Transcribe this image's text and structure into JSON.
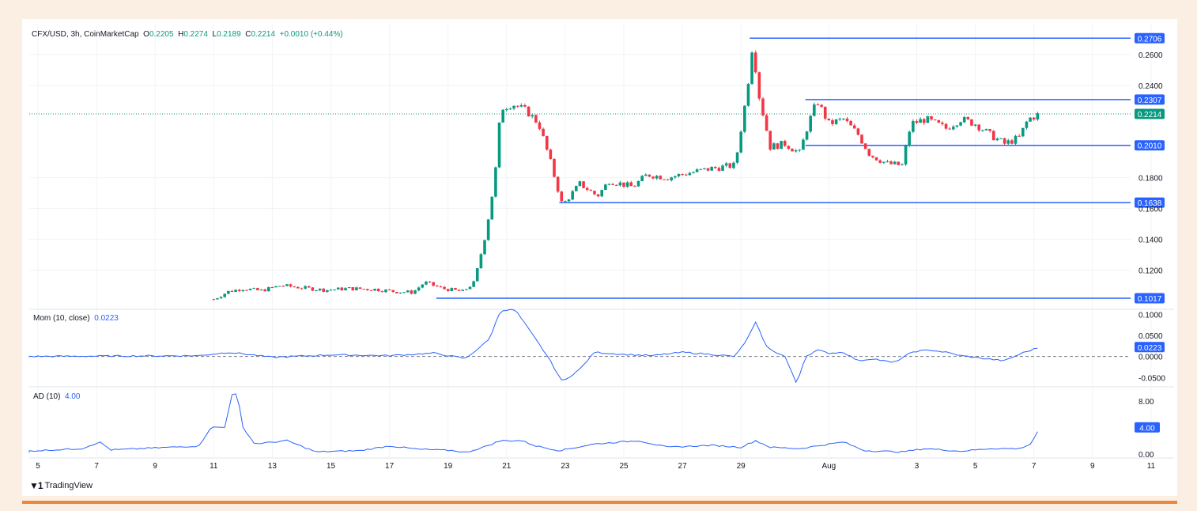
{
  "header": {
    "symbol": "CFX/USD, 3h, CoinMarketCap",
    "o_label": "O",
    "o_val": "0.2205",
    "h_label": "H",
    "h_val": "0.2274",
    "l_label": "L",
    "l_val": "0.2189",
    "c_label": "C",
    "c_val": "0.2214",
    "change": "+0.0010 (+0.44%)"
  },
  "mom_header": {
    "label": "Mom (10, close)",
    "value": "0.0223"
  },
  "ad_header": {
    "label": "AD (10)",
    "value": "4.00"
  },
  "branding": {
    "name": "TradingView"
  },
  "colors": {
    "up": "#089981",
    "down": "#f23645",
    "level": "#2962ff",
    "indicator": "#2962ff",
    "background": "#ffffff",
    "page": "#fbeee3",
    "accent_bar": "#e8893e"
  },
  "chart_data": [
    {
      "type": "candlestick",
      "title": "CFX/USD, 3h, CoinMarketCap",
      "x_ticks": [
        "5",
        "7",
        "9",
        "11",
        "13",
        "15",
        "17",
        "19",
        "21",
        "23",
        "25",
        "27",
        "29",
        "Aug",
        "3",
        "5",
        "7",
        "9",
        "11"
      ],
      "y_ticks": [
        "0.2600",
        "0.2400",
        "0.1800",
        "0.1600",
        "0.1400",
        "0.1200"
      ],
      "ylim": [
        0.095,
        0.28
      ],
      "current_price": 0.2214,
      "horizontal_levels": [
        {
          "value": 0.2706,
          "label": "0.2706",
          "from": "Jul 29"
        },
        {
          "value": 0.2307,
          "label": "0.2307",
          "from": "Jul 31"
        },
        {
          "value": 0.201,
          "label": "0.2010",
          "from": "Jul 31"
        },
        {
          "value": 0.1638,
          "label": "0.1638",
          "from": "Jul 23"
        },
        {
          "value": 0.1017,
          "label": "0.1017",
          "from": "Jul 18"
        }
      ],
      "price_label": "0.2214",
      "anchors": [
        [
          11.0,
          0.101
        ],
        [
          11.5,
          0.106
        ],
        [
          12.0,
          0.108
        ],
        [
          12.6,
          0.1065
        ],
        [
          13.3,
          0.11
        ],
        [
          14.0,
          0.1085
        ],
        [
          14.8,
          0.107
        ],
        [
          15.6,
          0.108
        ],
        [
          16.5,
          0.1075
        ],
        [
          17.2,
          0.106
        ],
        [
          17.8,
          0.1055
        ],
        [
          18.2,
          0.112
        ],
        [
          18.8,
          0.108
        ],
        [
          19.5,
          0.106
        ],
        [
          19.9,
          0.112
        ],
        [
          20.3,
          0.145
        ],
        [
          20.6,
          0.18
        ],
        [
          20.8,
          0.225
        ],
        [
          21.2,
          0.228
        ],
        [
          21.7,
          0.223
        ],
        [
          22.1,
          0.215
        ],
        [
          22.5,
          0.19
        ],
        [
          22.9,
          0.162
        ],
        [
          23.5,
          0.176
        ],
        [
          24.1,
          0.168
        ],
        [
          24.5,
          0.178
        ],
        [
          25.3,
          0.174
        ],
        [
          25.8,
          0.182
        ],
        [
          26.5,
          0.18
        ],
        [
          27.2,
          0.183
        ],
        [
          28.0,
          0.186
        ],
        [
          28.8,
          0.188
        ],
        [
          29.2,
          0.235
        ],
        [
          29.4,
          0.268
        ],
        [
          29.6,
          0.235
        ],
        [
          30.0,
          0.2
        ],
        [
          30.5,
          0.202
        ],
        [
          31.0,
          0.196
        ],
        [
          31.3,
          0.215
        ],
        [
          31.6,
          0.23
        ],
        [
          32.0,
          0.215
        ],
        [
          32.5,
          0.218
        ],
        [
          33.0,
          0.208
        ],
        [
          33.4,
          0.195
        ],
        [
          34.0,
          0.189
        ],
        [
          34.5,
          0.188
        ],
        [
          34.8,
          0.215
        ],
        [
          35.3,
          0.218
        ],
        [
          36.0,
          0.212
        ],
        [
          36.5,
          0.218
        ],
        [
          37.0,
          0.215
        ],
        [
          37.5,
          0.208
        ],
        [
          38.0,
          0.202
        ],
        [
          38.5,
          0.206
        ],
        [
          38.8,
          0.218
        ],
        [
          39.2,
          0.2214
        ]
      ]
    },
    {
      "type": "line",
      "title": "Mom (10, close)",
      "y_ticks": [
        "0.1000",
        "0.0500",
        "0.0000",
        "-0.0500"
      ],
      "ylim": [
        -0.07,
        0.11
      ],
      "value_label": "0.0223",
      "anchors": [
        [
          4.0,
          0.0
        ],
        [
          10.5,
          0.002
        ],
        [
          11.5,
          0.01
        ],
        [
          12.3,
          0.004
        ],
        [
          13.0,
          -0.002
        ],
        [
          15.0,
          0.004
        ],
        [
          17.0,
          0.002
        ],
        [
          18.5,
          0.008
        ],
        [
          19.6,
          -0.005
        ],
        [
          20.4,
          0.04
        ],
        [
          20.8,
          0.11
        ],
        [
          21.3,
          0.11
        ],
        [
          21.8,
          0.06
        ],
        [
          22.4,
          0.0
        ],
        [
          22.9,
          -0.06
        ],
        [
          23.5,
          -0.03
        ],
        [
          24.0,
          0.01
        ],
        [
          25.0,
          0.005
        ],
        [
          26.0,
          0.002
        ],
        [
          27.0,
          0.01
        ],
        [
          28.0,
          0.005
        ],
        [
          28.8,
          0.0
        ],
        [
          29.2,
          0.04
        ],
        [
          29.5,
          0.08
        ],
        [
          29.9,
          0.02
        ],
        [
          30.5,
          0.0
        ],
        [
          30.9,
          -0.065
        ],
        [
          31.2,
          0.0
        ],
        [
          31.6,
          0.015
        ],
        [
          32.0,
          0.008
        ],
        [
          32.5,
          0.01
        ],
        [
          33.0,
          -0.01
        ],
        [
          33.5,
          -0.005
        ],
        [
          34.2,
          -0.015
        ],
        [
          34.9,
          0.012
        ],
        [
          35.5,
          0.015
        ],
        [
          36.0,
          0.01
        ],
        [
          36.5,
          0.002
        ],
        [
          37.3,
          -0.005
        ],
        [
          38.0,
          -0.01
        ],
        [
          38.6,
          0.008
        ],
        [
          39.2,
          0.0223
        ]
      ]
    },
    {
      "type": "line",
      "title": "AD (10)",
      "y_ticks": [
        "8.00",
        "4.00",
        "0.00"
      ],
      "ylim": [
        -0.5,
        10
      ],
      "value_label": "4.00",
      "anchors": [
        [
          4.0,
          0.3
        ],
        [
          6.5,
          0.8
        ],
        [
          7.1,
          1.8
        ],
        [
          7.5,
          0.6
        ],
        [
          9.5,
          1.0
        ],
        [
          10.5,
          1.2
        ],
        [
          10.9,
          4.0
        ],
        [
          11.4,
          4.0
        ],
        [
          11.6,
          9.0
        ],
        [
          11.8,
          9.0
        ],
        [
          12.0,
          4.0
        ],
        [
          12.4,
          1.5
        ],
        [
          13.5,
          2.0
        ],
        [
          14.5,
          0.3
        ],
        [
          16.0,
          0.5
        ],
        [
          17.0,
          1.2
        ],
        [
          18.0,
          0.7
        ],
        [
          19.2,
          0.5
        ],
        [
          19.6,
          0.2
        ],
        [
          20.2,
          1.0
        ],
        [
          20.8,
          2.0
        ],
        [
          21.5,
          2.0
        ],
        [
          22.0,
          1.2
        ],
        [
          22.8,
          0.5
        ],
        [
          24.0,
          1.5
        ],
        [
          25.5,
          2.0
        ],
        [
          26.5,
          1.0
        ],
        [
          28.0,
          1.3
        ],
        [
          29.0,
          1.0
        ],
        [
          29.5,
          2.0
        ],
        [
          30.0,
          1.0
        ],
        [
          31.0,
          0.8
        ],
        [
          32.5,
          1.8
        ],
        [
          33.2,
          0.5
        ],
        [
          34.5,
          0.3
        ],
        [
          35.3,
          0.8
        ],
        [
          36.5,
          0.4
        ],
        [
          37.5,
          0.8
        ],
        [
          38.5,
          0.8
        ],
        [
          38.9,
          1.5
        ],
        [
          39.2,
          4.0
        ]
      ]
    }
  ]
}
